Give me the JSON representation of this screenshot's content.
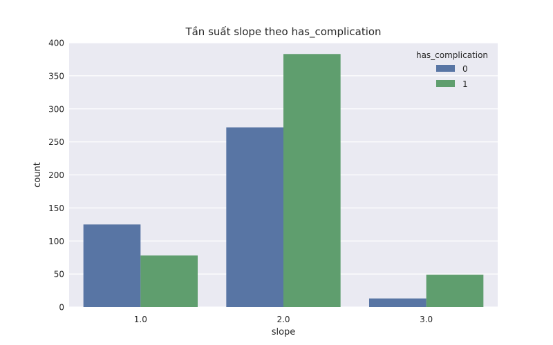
{
  "chart_data": {
    "type": "bar",
    "title": "Tần suất slope theo has_complication",
    "xlabel": "slope",
    "ylabel": "count",
    "categories": [
      "1.0",
      "2.0",
      "3.0"
    ],
    "series": [
      {
        "name": "0",
        "values": [
          125,
          272,
          13
        ],
        "color": "#5875a4"
      },
      {
        "name": "1",
        "values": [
          78,
          383,
          49
        ],
        "color": "#5f9e6e"
      }
    ],
    "ylim": [
      0,
      400
    ],
    "yticks": [
      0,
      50,
      100,
      150,
      200,
      250,
      300,
      350,
      400
    ],
    "grid": true,
    "background": "#eaeaf2",
    "legend": {
      "title": "has_complication",
      "placement": "top-right"
    }
  }
}
